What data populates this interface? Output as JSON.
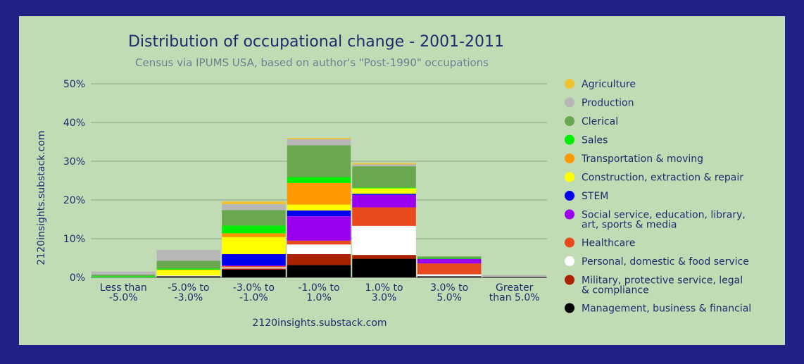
{
  "chart_data": {
    "type": "bar",
    "stacked": true,
    "title": "Distribution of occupational change - 2001-2011",
    "subtitle": "Census via IPUMS USA, based on author's \"Post-1990\" occupations",
    "xlabel": "2120insights.substack.com",
    "ylabel": "2120insights.substack.com",
    "ylim": [
      0,
      50
    ],
    "yticks": [
      "0%",
      "10%",
      "20%",
      "30%",
      "40%",
      "50%"
    ],
    "grid": true,
    "legend_position": "right",
    "categories": [
      [
        "Less than",
        "-5.0%"
      ],
      [
        "-5.0% to",
        "-3.0%"
      ],
      [
        "-3.0% to",
        "-1.0%"
      ],
      [
        "-1.0% to",
        "1.0%"
      ],
      [
        "1.0% to",
        "3.0%"
      ],
      [
        "3.0% to",
        "5.0%"
      ],
      [
        "Greater",
        "than 5.0%"
      ]
    ],
    "series": [
      {
        "name": "Management, business & financial",
        "color": "#000000",
        "values": [
          0.0,
          0.3,
          2.0,
          3.2,
          4.8,
          0.3,
          0.2
        ]
      },
      {
        "name": "Military, protective service, legal & compliance",
        "color": "#aa2200",
        "values": [
          0.0,
          0.0,
          0.3,
          2.8,
          1.0,
          0.0,
          0.0
        ]
      },
      {
        "name": "Personal, domestic & food service",
        "color": "#ffffff",
        "values": [
          0.0,
          0.2,
          0.3,
          2.5,
          7.5,
          0.5,
          0.1
        ]
      },
      {
        "name": "Healthcare",
        "color": "#e84a1e",
        "values": [
          0.0,
          0.0,
          0.3,
          1.0,
          4.8,
          2.8,
          0.0
        ]
      },
      {
        "name": "Social service, education, library, art, sports & media",
        "color": "#9900ee",
        "values": [
          0.0,
          0.0,
          0.2,
          6.3,
          3.2,
          1.2,
          0.0
        ]
      },
      {
        "name": "STEM",
        "color": "#0000ee",
        "values": [
          0.0,
          0.0,
          2.9,
          1.5,
          0.3,
          0.0,
          0.0
        ]
      },
      {
        "name": "Construction, extraction & repair",
        "color": "#ffff00",
        "values": [
          0.0,
          1.4,
          4.4,
          1.5,
          1.4,
          0.0,
          0.0
        ]
      },
      {
        "name": "Transportation & moving",
        "color": "#ff9900",
        "values": [
          0.0,
          0.1,
          1.0,
          5.6,
          0.0,
          0.0,
          0.0
        ]
      },
      {
        "name": "Sales",
        "color": "#00ee00",
        "values": [
          0.3,
          0.3,
          2.0,
          1.5,
          0.2,
          0.2,
          0.0
        ]
      },
      {
        "name": "Clerical",
        "color": "#6aa84f",
        "values": [
          0.4,
          2.0,
          4.0,
          8.2,
          5.5,
          0.4,
          0.0
        ]
      },
      {
        "name": "Production",
        "color": "#b7b7b7",
        "values": [
          0.8,
          2.8,
          1.5,
          1.6,
          0.5,
          0.0,
          0.3
        ]
      },
      {
        "name": "Agriculture",
        "color": "#f1c232",
        "values": [
          0.0,
          0.0,
          0.7,
          0.3,
          0.3,
          0.0,
          0.0
        ]
      }
    ]
  }
}
